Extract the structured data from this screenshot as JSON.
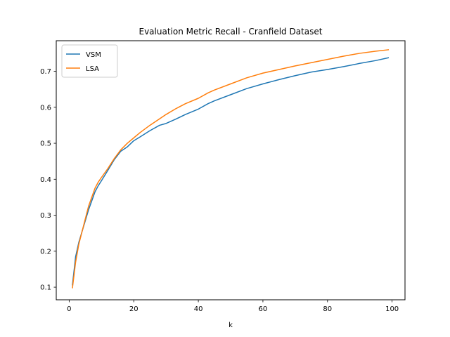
{
  "chart_data": {
    "type": "line",
    "title": "Evaluation Metric Recall - Cranfield Dataset",
    "xlabel": "k",
    "ylabel": "",
    "xlim": [
      -4,
      104
    ],
    "ylim": [
      0.065,
      0.785
    ],
    "xticks": [
      0,
      20,
      40,
      60,
      80,
      100
    ],
    "yticks": [
      0.1,
      0.2,
      0.3,
      0.4,
      0.5,
      0.6,
      0.7
    ],
    "xtick_labels": [
      "0",
      "20",
      "40",
      "60",
      "80",
      "100"
    ],
    "ytick_labels": [
      "0.1",
      "0.2",
      "0.3",
      "0.4",
      "0.5",
      "0.6",
      "0.7"
    ],
    "grid": false,
    "legend": "upper-left",
    "x": [
      1,
      2,
      3,
      4,
      5,
      6,
      7,
      8,
      9,
      10,
      12,
      14,
      16,
      18,
      20,
      22,
      25,
      28,
      30,
      33,
      36,
      40,
      43,
      45,
      50,
      55,
      60,
      65,
      70,
      75,
      80,
      85,
      90,
      95,
      99
    ],
    "series": [
      {
        "name": "VSM",
        "color": "#1f77b4",
        "values": [
          0.105,
          0.185,
          0.225,
          0.255,
          0.285,
          0.315,
          0.34,
          0.365,
          0.382,
          0.396,
          0.425,
          0.455,
          0.478,
          0.49,
          0.507,
          0.518,
          0.535,
          0.55,
          0.555,
          0.567,
          0.58,
          0.595,
          0.61,
          0.618,
          0.635,
          0.652,
          0.665,
          0.677,
          0.688,
          0.698,
          0.705,
          0.713,
          0.722,
          0.73,
          0.738
        ]
      },
      {
        "name": "LSA",
        "color": "#ff7f0e",
        "values": [
          0.097,
          0.17,
          0.22,
          0.255,
          0.29,
          0.325,
          0.35,
          0.375,
          0.392,
          0.405,
          0.43,
          0.458,
          0.482,
          0.5,
          0.515,
          0.53,
          0.55,
          0.568,
          0.58,
          0.596,
          0.61,
          0.625,
          0.64,
          0.648,
          0.665,
          0.682,
          0.695,
          0.705,
          0.715,
          0.724,
          0.733,
          0.742,
          0.75,
          0.756,
          0.76
        ]
      }
    ]
  }
}
